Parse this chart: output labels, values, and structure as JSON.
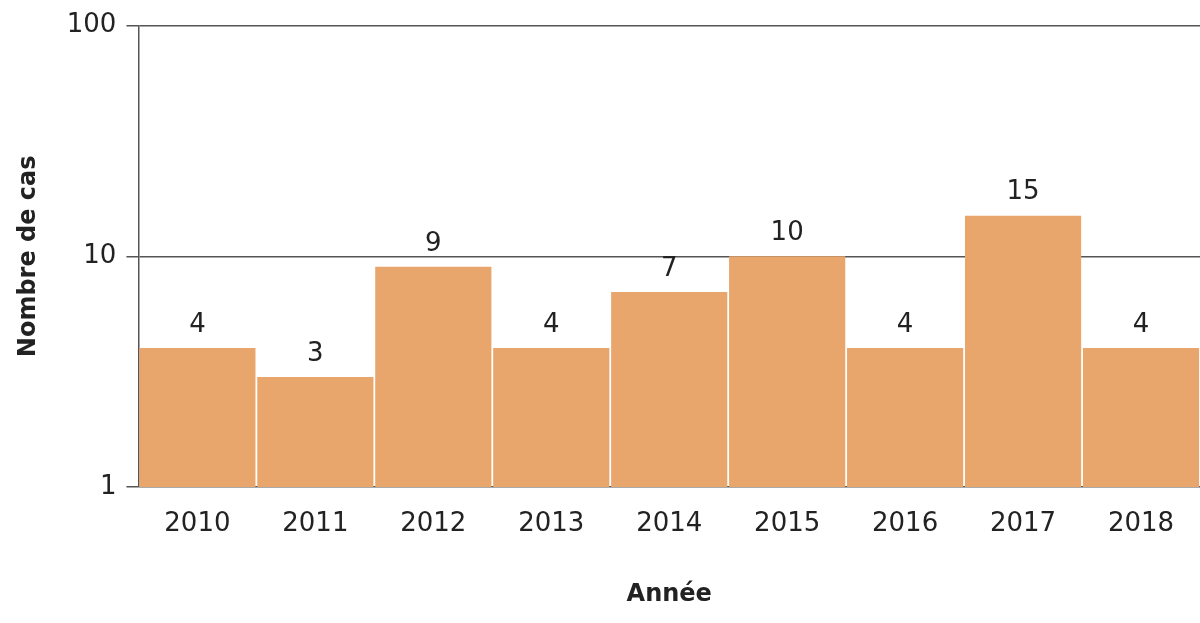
{
  "chart_data": {
    "type": "bar",
    "xlabel": "Année",
    "ylabel": "Nombre de cas",
    "categories": [
      "2010",
      "2011",
      "2012",
      "2013",
      "2014",
      "2015",
      "2016",
      "2017",
      "2018"
    ],
    "values": [
      4,
      3,
      9,
      4,
      7,
      10,
      4,
      15,
      4
    ],
    "color": "#e9a66c",
    "log": "y",
    "ylim": [
      1,
      100
    ],
    "yticks": [
      1,
      10,
      100
    ],
    "grid": "y",
    "data_labels": true,
    "legend": false
  }
}
